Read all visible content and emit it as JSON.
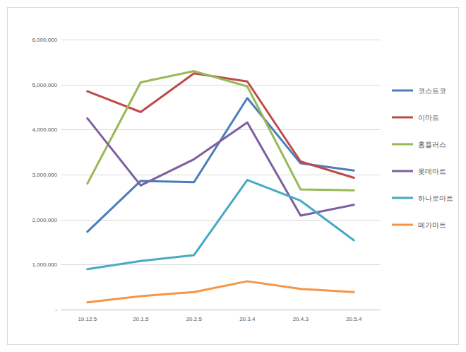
{
  "chart_data": {
    "type": "line",
    "categories": [
      "19.12.5",
      "20.1.5",
      "20.2.5",
      "20.3.4",
      "20.4.3",
      "20.5.4"
    ],
    "series": [
      {
        "name": "코스트코",
        "color": "#4a7ebb",
        "values": [
          1730000,
          2860000,
          2830000,
          4700000,
          3250000,
          3090000
        ]
      },
      {
        "name": "이마트",
        "color": "#be4b48",
        "values": [
          4850000,
          4390000,
          5250000,
          5070000,
          3290000,
          2930000
        ]
      },
      {
        "name": "홈플러스",
        "color": "#98b954",
        "values": [
          2800000,
          5050000,
          5300000,
          4960000,
          2670000,
          2650000
        ]
      },
      {
        "name": "롯데마트",
        "color": "#7d60a0",
        "values": [
          4250000,
          2760000,
          3340000,
          4160000,
          2090000,
          2330000
        ]
      },
      {
        "name": "하나로마트",
        "color": "#46aac5",
        "values": [
          900000,
          1080000,
          1210000,
          2880000,
          2420000,
          1540000
        ]
      },
      {
        "name": "메가마트",
        "color": "#f69546",
        "values": [
          160000,
          300000,
          390000,
          630000,
          460000,
          390000
        ]
      }
    ],
    "ylim": [
      0,
      6000000
    ],
    "yticks": [
      {
        "value": 0,
        "label": "-"
      },
      {
        "value": 1000000,
        "label": "1,000,000"
      },
      {
        "value": 2000000,
        "label": "2,000,000"
      },
      {
        "value": 3000000,
        "label": "3,000,000"
      },
      {
        "value": 4000000,
        "label": "4,000,000"
      },
      {
        "value": 5000000,
        "label": "5,000,000"
      },
      {
        "value": 6000000,
        "label": "6,000,000"
      }
    ],
    "grid": true,
    "legend": "right"
  }
}
